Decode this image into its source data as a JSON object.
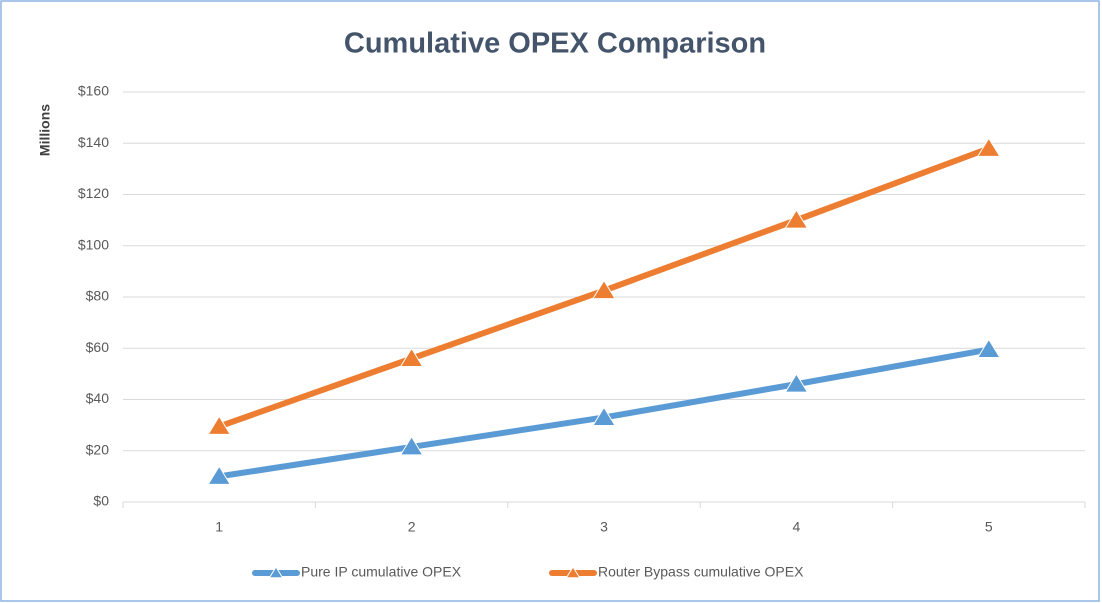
{
  "chart_data": {
    "type": "line",
    "title": "Cumulative OPEX Comparison",
    "y_label": "Millions",
    "categories": [
      "1",
      "2",
      "3",
      "4",
      "5"
    ],
    "series": [
      {
        "name": "Pure IP cumulative OPEX",
        "color": "#5b9bd5",
        "values": [
          10,
          21.5,
          33,
          46,
          59.5
        ]
      },
      {
        "name": "Router Bypass cumulative OPEX",
        "color": "#ed7d31",
        "values": [
          29.5,
          56,
          82.5,
          110,
          138
        ]
      }
    ],
    "ylim": [
      0,
      160
    ],
    "yticks": [
      {
        "value": 0,
        "label": "$0"
      },
      {
        "value": 20,
        "label": "$20"
      },
      {
        "value": 40,
        "label": "$40"
      },
      {
        "value": 60,
        "label": "$60"
      },
      {
        "value": 80,
        "label": "$80"
      },
      {
        "value": 100,
        "label": "$100"
      },
      {
        "value": 120,
        "label": "$120"
      },
      {
        "value": 140,
        "label": "$140"
      },
      {
        "value": 160,
        "label": "$160"
      }
    ],
    "grid": true,
    "legend": "bottom"
  }
}
